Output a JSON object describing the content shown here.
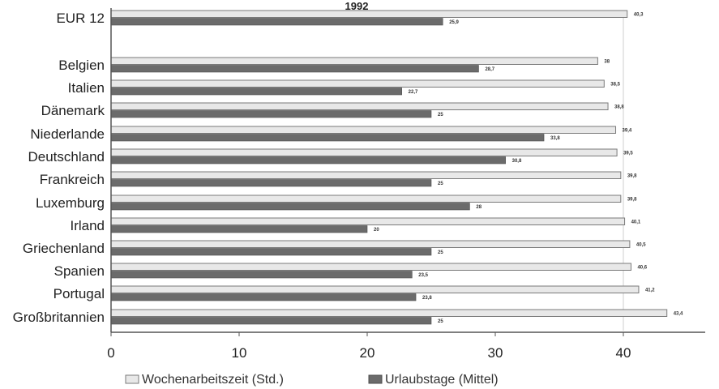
{
  "chart_data": {
    "type": "bar",
    "orientation": "horizontal",
    "title": "1992",
    "categories": [
      "EUR 12",
      "Belgien",
      "Italien",
      "Dänemark",
      "Niederlande",
      "Deutschland",
      "Frankreich",
      "Luxemburg",
      "Irland",
      "Griechenland",
      "Spanien",
      "Portugal",
      "Großbritannien"
    ],
    "series": [
      {
        "name": "Wochenarbeitszeit (Std.)",
        "color": "#e8e8e8",
        "values": [
          40.3,
          38,
          38.5,
          38.8,
          39.4,
          39.5,
          39.8,
          39.8,
          40.1,
          40.5,
          40.6,
          41.2,
          43.4
        ],
        "labels": [
          "40,3",
          "38",
          "38,5",
          "38,8",
          "39,4",
          "39,5",
          "39,8",
          "39,8",
          "40,1",
          "40,5",
          "40,6",
          "41,2",
          "43,4"
        ]
      },
      {
        "name": "Urlaubstage (Mittel)",
        "color": "#6b6b6b",
        "values": [
          25.9,
          28.7,
          22.7,
          25,
          33.8,
          30.8,
          25,
          28,
          20,
          25,
          23.5,
          23.8,
          25
        ],
        "labels": [
          "25,9",
          "28,7",
          "22,7",
          "25",
          "33,8",
          "30,8",
          "25",
          "28",
          "20",
          "25",
          "23,5",
          "23,8",
          "25"
        ]
      }
    ],
    "x_ticks": [
      0,
      10,
      20,
      30,
      40
    ],
    "xlim": [
      0,
      47
    ],
    "grid": "vertical-at-40",
    "legend_position": "bottom"
  }
}
